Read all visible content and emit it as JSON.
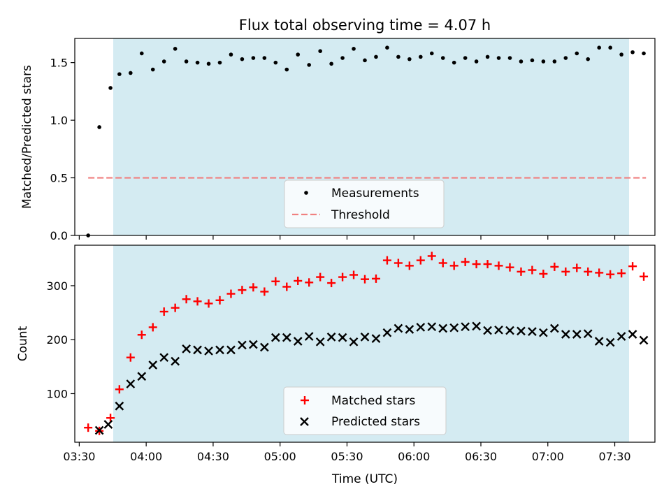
{
  "chart_data": [
    {
      "type": "scatter",
      "title": "Flux total observing time = 4.07 h",
      "xlabel": "",
      "ylabel": "Matched/Predicted stars",
      "ylim": [
        0,
        1.71
      ],
      "yticks": [
        "0.0",
        "0.5",
        "1.0",
        "1.5"
      ],
      "x_range": [
        "03:28",
        "07:48"
      ],
      "shaded_span": [
        "03:39",
        "07:44"
      ],
      "legend_position": "lower-center",
      "series": [
        {
          "name": "Measurements",
          "marker": "dot",
          "color": "#000000",
          "x": [
            "03:34",
            "03:39",
            "03:44",
            "03:48",
            "03:53",
            "03:58",
            "04:03",
            "04:08",
            "04:13",
            "04:18",
            "04:23",
            "04:28",
            "04:33",
            "04:38",
            "04:43",
            "04:48",
            "04:53",
            "04:58",
            "05:03",
            "05:08",
            "05:13",
            "05:18",
            "05:23",
            "05:28",
            "05:33",
            "05:38",
            "05:43",
            "05:48",
            "05:53",
            "05:58",
            "06:03",
            "06:08",
            "06:13",
            "06:18",
            "06:23",
            "06:28",
            "06:33",
            "06:38",
            "06:43",
            "06:48",
            "06:53",
            "06:58",
            "07:03",
            "07:08",
            "07:13",
            "07:18",
            "07:23",
            "07:28",
            "07:33",
            "07:38",
            "07:43"
          ],
          "y": [
            0.0,
            0.94,
            1.28,
            1.4,
            1.41,
            1.58,
            1.44,
            1.51,
            1.62,
            1.51,
            1.5,
            1.49,
            1.5,
            1.57,
            1.53,
            1.54,
            1.54,
            1.5,
            1.44,
            1.57,
            1.48,
            1.6,
            1.49,
            1.54,
            1.62,
            1.52,
            1.55,
            1.63,
            1.55,
            1.53,
            1.55,
            1.58,
            1.54,
            1.5,
            1.54,
            1.51,
            1.55,
            1.54,
            1.54,
            1.51,
            1.52,
            1.51,
            1.51,
            1.54,
            1.58,
            1.53,
            1.63,
            1.63,
            1.57,
            1.59,
            1.58
          ]
        },
        {
          "name": "Threshold",
          "marker": "dashed-line",
          "color": "#f08080",
          "x": [
            "03:34",
            "07:44"
          ],
          "y": [
            0.5,
            0.5
          ]
        }
      ]
    },
    {
      "type": "scatter",
      "title": "",
      "xlabel": "Time (UTC)",
      "ylabel": "Count",
      "ylim": [
        10,
        375
      ],
      "yticks": [
        "100",
        "200",
        "300"
      ],
      "xticks": [
        "03:30",
        "04:00",
        "04:30",
        "05:00",
        "05:30",
        "06:00",
        "06:30",
        "07:00",
        "07:30"
      ],
      "x_range": [
        "03:28",
        "07:48"
      ],
      "shaded_span": [
        "03:39",
        "07:44"
      ],
      "legend_position": "lower-center",
      "series": [
        {
          "name": "Matched stars",
          "marker": "plus",
          "color": "#ff0000",
          "x": [
            "03:34",
            "03:39",
            "03:44",
            "03:48",
            "03:53",
            "03:58",
            "04:03",
            "04:08",
            "04:13",
            "04:18",
            "04:23",
            "04:28",
            "04:33",
            "04:38",
            "04:43",
            "04:48",
            "04:53",
            "04:58",
            "05:03",
            "05:08",
            "05:13",
            "05:18",
            "05:23",
            "05:28",
            "05:33",
            "05:38",
            "05:43",
            "05:48",
            "05:53",
            "05:58",
            "06:03",
            "06:08",
            "06:13",
            "06:18",
            "06:23",
            "06:28",
            "06:33",
            "06:38",
            "06:43",
            "06:48",
            "06:53",
            "06:58",
            "07:03",
            "07:08",
            "07:13",
            "07:18",
            "07:23",
            "07:28",
            "07:33",
            "07:38",
            "07:43"
          ],
          "y": [
            37,
            31,
            55,
            108,
            167,
            209,
            223,
            252,
            259,
            275,
            271,
            267,
            273,
            285,
            292,
            297,
            289,
            308,
            298,
            309,
            306,
            316,
            305,
            316,
            320,
            312,
            313,
            347,
            342,
            337,
            347,
            355,
            342,
            337,
            344,
            340,
            340,
            337,
            334,
            326,
            329,
            322,
            335,
            326,
            333,
            326,
            324,
            321,
            323,
            336,
            317
          ]
        },
        {
          "name": "Predicted stars",
          "marker": "x",
          "color": "#000000",
          "x": [
            "03:39",
            "03:43",
            "03:48",
            "03:53",
            "03:58",
            "04:03",
            "04:08",
            "04:13",
            "04:18",
            "04:23",
            "04:28",
            "04:33",
            "04:38",
            "04:43",
            "04:48",
            "04:53",
            "04:58",
            "05:03",
            "05:08",
            "05:13",
            "05:18",
            "05:23",
            "05:28",
            "05:33",
            "05:38",
            "05:43",
            "05:48",
            "05:53",
            "05:58",
            "06:03",
            "06:08",
            "06:13",
            "06:18",
            "06:23",
            "06:28",
            "06:33",
            "06:38",
            "06:43",
            "06:48",
            "06:53",
            "06:58",
            "07:03",
            "07:08",
            "07:13",
            "07:18",
            "07:23",
            "07:28",
            "07:33",
            "07:38",
            "07:43"
          ],
          "y": [
            32,
            43,
            77,
            118,
            132,
            153,
            167,
            160,
            183,
            181,
            179,
            181,
            181,
            190,
            191,
            186,
            204,
            204,
            197,
            206,
            196,
            205,
            204,
            196,
            205,
            202,
            213,
            221,
            219,
            223,
            224,
            221,
            222,
            224,
            225,
            217,
            218,
            217,
            216,
            215,
            213,
            221,
            210,
            210,
            211,
            197,
            195,
            206,
            210,
            199
          ]
        }
      ]
    }
  ]
}
